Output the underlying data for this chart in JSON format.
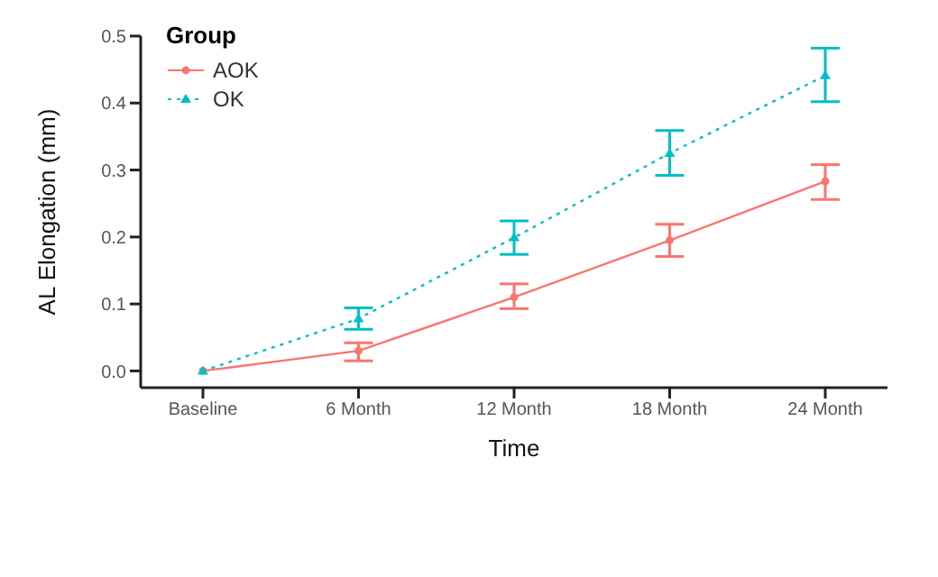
{
  "chart_data": {
    "type": "line",
    "xlabel": "Time",
    "ylabel": "AL Elongation (mm)",
    "legend_title": "Group",
    "categories": [
      "Baseline",
      "6 Month",
      "12 Month",
      "18 Month",
      "24 Month"
    ],
    "series": [
      {
        "name": "AOK",
        "color": "#f8766d",
        "marker": "circle",
        "line_style": "solid",
        "values": [
          0,
          0.03,
          0.11,
          0.195,
          0.283
        ],
        "errors": [
          null,
          [
            0.015,
            0.042
          ],
          [
            0.093,
            0.13
          ],
          [
            0.171,
            0.219
          ],
          [
            0.256,
            0.308
          ]
        ]
      },
      {
        "name": "OK",
        "color": "#00bfc4",
        "marker": "triangle",
        "line_style": "dotted",
        "values": [
          0,
          0.078,
          0.199,
          0.325,
          0.441
        ],
        "errors": [
          null,
          [
            0.062,
            0.094
          ],
          [
            0.174,
            0.224
          ],
          [
            0.292,
            0.359
          ],
          [
            0.402,
            0.482
          ]
        ]
      }
    ],
    "ylim": [
      -0.025,
      0.5
    ],
    "yticks": [
      {
        "value": 0,
        "label": "0.0"
      },
      0.1,
      0.2,
      0.3,
      0.4,
      0.5
    ],
    "grid": false,
    "legend": "top left"
  }
}
